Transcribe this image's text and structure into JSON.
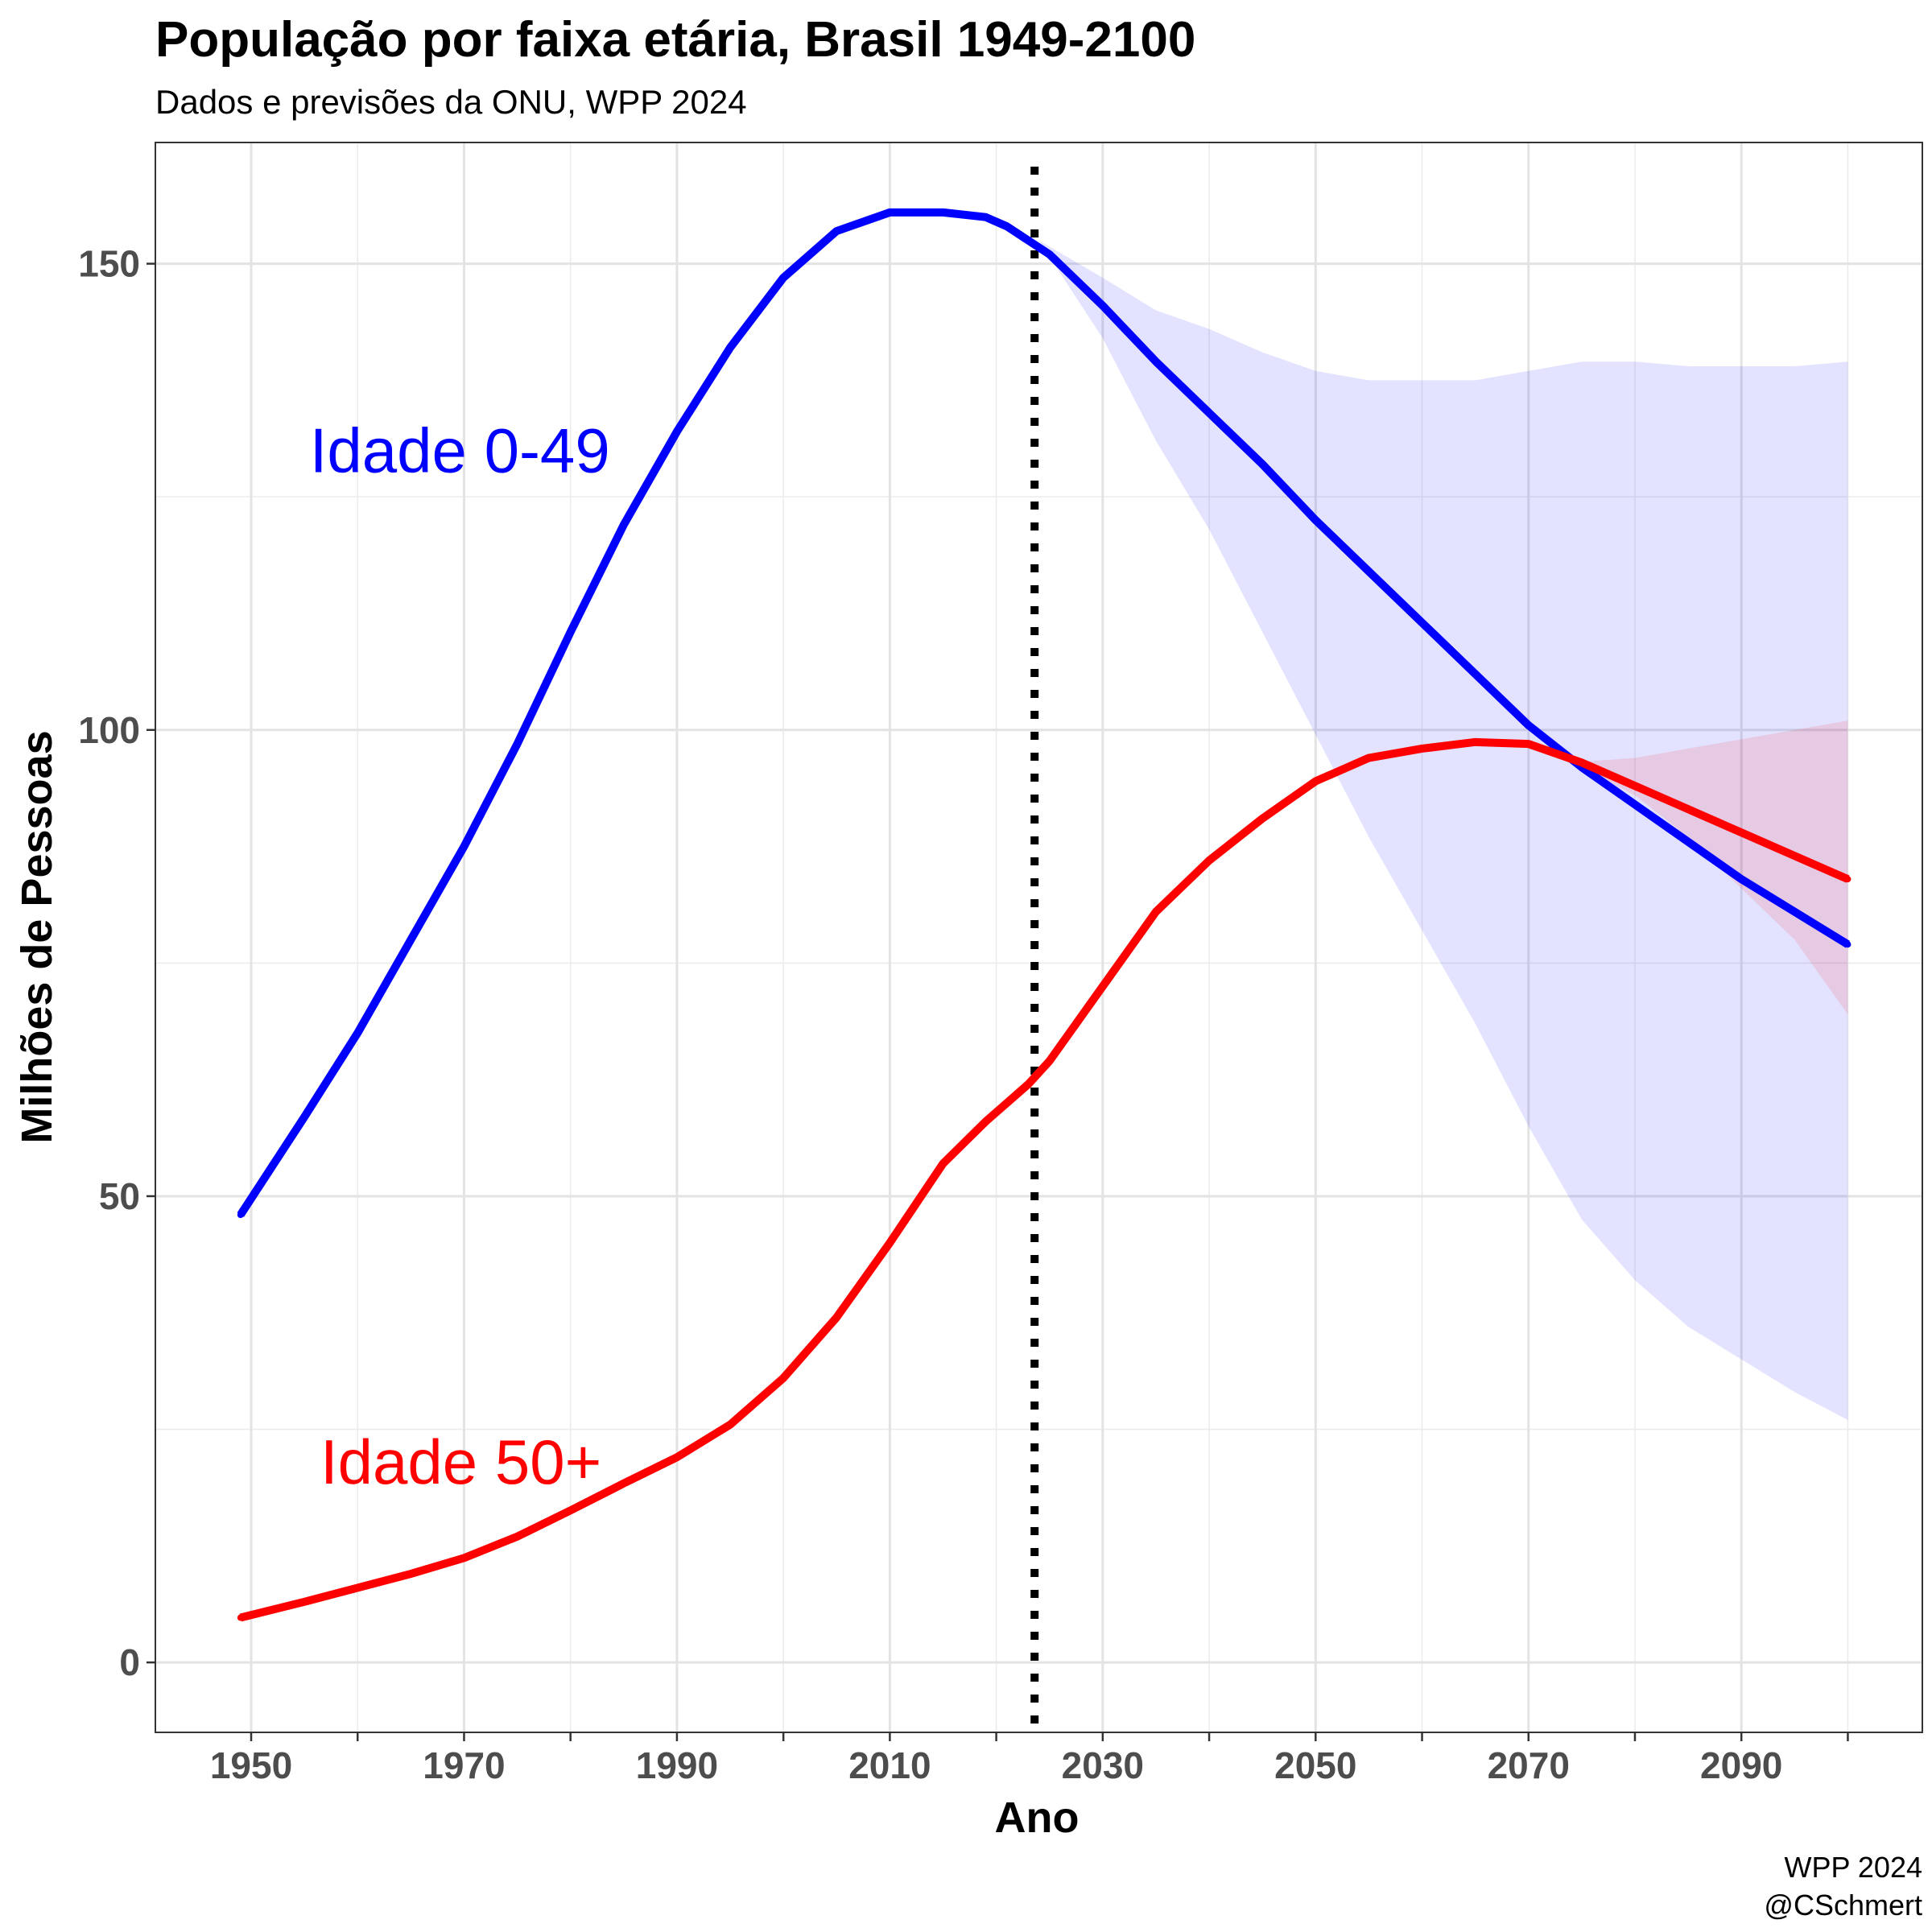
{
  "chart_data": {
    "type": "line",
    "title": "População por faixa etária, Brasil 1949-2100",
    "subtitle": "Dados e previsões da ONU, WPP 2024",
    "xlabel": "Ano",
    "ylabel": "Milhões de Pessoas",
    "caption": [
      "WPP 2024",
      "@CSchmert"
    ],
    "xlim": [
      1941,
      2107
    ],
    "ylim": [
      -7.5,
      163
    ],
    "xticks": [
      1950,
      1970,
      1990,
      2010,
      2030,
      2050,
      2070,
      2090
    ],
    "yticks": [
      0,
      50,
      100,
      150
    ],
    "x_minor_gridlines": [
      1960,
      1980,
      2000,
      2020,
      2040,
      2060,
      2080,
      2100
    ],
    "y_minor_gridlines": [
      25,
      75,
      125
    ],
    "grid": true,
    "vline": {
      "x": 2023.6,
      "style": "dotted",
      "color": "#000000"
    },
    "colors": {
      "young": "#0000ff",
      "old": "#ff0000",
      "young_band": "#0000ff",
      "old_band": "#ff0000"
    },
    "series": [
      {
        "label": "Idade 0-49",
        "label_position": [
          1955.5,
          130
        ],
        "color": "#0000ff",
        "x": [
          1949,
          1955,
          1960,
          1965,
          1970,
          1975,
          1980,
          1985,
          1990,
          1995,
          2000,
          2005,
          2010,
          2015,
          2019,
          2021,
          2023,
          2025,
          2030,
          2035,
          2040,
          2045,
          2050,
          2055,
          2060,
          2065,
          2070,
          2075,
          2080,
          2085,
          2090,
          2095,
          2100
        ],
        "values": [
          48,
          58.5,
          67.5,
          77.5,
          87.5,
          98.5,
          110.5,
          122,
          132,
          141,
          148.5,
          153.5,
          155.5,
          155.5,
          155,
          154,
          152.5,
          151,
          145.5,
          139.5,
          134,
          128.5,
          122.5,
          117,
          111.5,
          106,
          100.5,
          96,
          92,
          88,
          84,
          80.5,
          77
        ]
      },
      {
        "label": "Idade 50+",
        "label_position": [
          1956.5,
          21.5
        ],
        "color": "#ff0000",
        "x": [
          1949,
          1955,
          1960,
          1965,
          1970,
          1975,
          1980,
          1985,
          1990,
          1995,
          2000,
          2005,
          2010,
          2015,
          2019,
          2021,
          2023,
          2025,
          2030,
          2035,
          2040,
          2045,
          2050,
          2055,
          2060,
          2065,
          2070,
          2075,
          2080,
          2085,
          2090,
          2095,
          2100
        ],
        "values": [
          4.8,
          6.5,
          8,
          9.5,
          11.2,
          13.5,
          16.3,
          19.2,
          22,
          25.5,
          30.5,
          37,
          45,
          53.5,
          58,
          60,
          62,
          64.5,
          72.5,
          80.5,
          86,
          90.5,
          94.5,
          97,
          98,
          98.7,
          98.5,
          96.5,
          94,
          91.5,
          89,
          86.5,
          84
        ]
      }
    ],
    "intervals": [
      {
        "series": "Idade 0-49",
        "x": [
          2024,
          2030,
          2035,
          2040,
          2045,
          2050,
          2055,
          2060,
          2065,
          2070,
          2075,
          2080,
          2085,
          2090,
          2095,
          2100
        ],
        "lower": [
          152.5,
          142,
          131,
          121.5,
          110.5,
          99.5,
          88.5,
          78.5,
          68.5,
          57.5,
          47.5,
          41,
          36,
          32.5,
          29,
          26
        ],
        "upper": [
          152.5,
          148.5,
          145,
          143,
          140.5,
          138.5,
          137.5,
          137.5,
          137.5,
          138.5,
          139.5,
          139.5,
          139,
          139,
          139,
          139.5
        ]
      },
      {
        "series": "Idade 50+",
        "x": [
          2074,
          2080,
          2085,
          2090,
          2095,
          2100
        ],
        "lower": [
          96.5,
          93,
          88.5,
          83,
          77.5,
          69.5
        ],
        "upper": [
          96.5,
          97,
          98,
          99,
          100,
          101
        ]
      }
    ]
  }
}
